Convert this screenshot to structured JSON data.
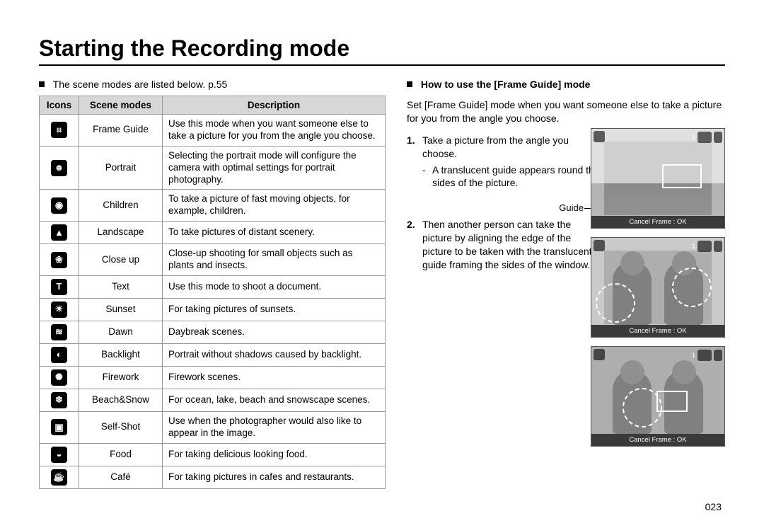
{
  "page_title": "Starting the Recording mode",
  "page_number": "023",
  "left": {
    "intro": "The scene modes are listed below. p.55",
    "table": {
      "headers": {
        "icons": "Icons",
        "modes": "Scene modes",
        "desc": "Description"
      },
      "rows": [
        {
          "icon_glyph": "⌗",
          "mode": "Frame Guide",
          "desc": "Use this mode when you want someone else to take a picture for you from the angle you choose."
        },
        {
          "icon_glyph": "☻",
          "mode": "Portrait",
          "desc": "Selecting the portrait mode will configure the camera with optimal settings for portrait photography."
        },
        {
          "icon_glyph": "◉",
          "mode": "Children",
          "desc": "To take a picture of fast moving objects, for example, children."
        },
        {
          "icon_glyph": "▲",
          "mode": "Landscape",
          "desc": "To take pictures of distant scenery."
        },
        {
          "icon_glyph": "❀",
          "mode": "Close up",
          "desc": "Close-up shooting for small objects such as plants and insects."
        },
        {
          "icon_glyph": "T",
          "mode": "Text",
          "desc": "Use this mode to shoot a document."
        },
        {
          "icon_glyph": "☀",
          "mode": "Sunset",
          "desc": "For taking pictures of sunsets."
        },
        {
          "icon_glyph": "≋",
          "mode": "Dawn",
          "desc": "Daybreak scenes."
        },
        {
          "icon_glyph": "◐",
          "mode": "Backlight",
          "desc": "Portrait without shadows caused by backlight."
        },
        {
          "icon_glyph": "✺",
          "mode": "Firework",
          "desc": "Firework scenes."
        },
        {
          "icon_glyph": "❄",
          "mode": "Beach&Snow",
          "desc": "For ocean, lake, beach and snowscape scenes."
        },
        {
          "icon_glyph": "▣",
          "mode": "Self-Shot",
          "desc": "Use when the photographer would also like to appear in the image."
        },
        {
          "icon_glyph": "◒",
          "mode": "Food",
          "desc": "For taking delicious looking food."
        },
        {
          "icon_glyph": "☕",
          "mode": "Café",
          "desc": "For taking pictures in cafes and restaurants."
        }
      ]
    }
  },
  "right": {
    "heading": "How to use the [Frame Guide] mode",
    "intro": "Set [Frame Guide] mode when you want someone else to take a picture for you from the angle you choose.",
    "guide_label": "Guide",
    "steps": [
      {
        "num": "1.",
        "text": "Take a picture from the angle you choose.",
        "sub": "A translucent guide appears round the sides of the picture."
      },
      {
        "num": "2.",
        "text": "Then another person can take the picture by aligning the edge of the picture to be taken with the translucent guide framing the sides of the window."
      }
    ],
    "screen_footer": "Cancel Frame : OK",
    "screen_topbar_right": "1"
  },
  "colors": {
    "table_header_bg": "#d7d7d7",
    "table_border": "#9a9a9a",
    "icon_bg": "#000000",
    "icon_fg": "#ffffff",
    "screen_bg": "#b8b8b8",
    "screen_footer_bg": "#3a3a3a"
  }
}
